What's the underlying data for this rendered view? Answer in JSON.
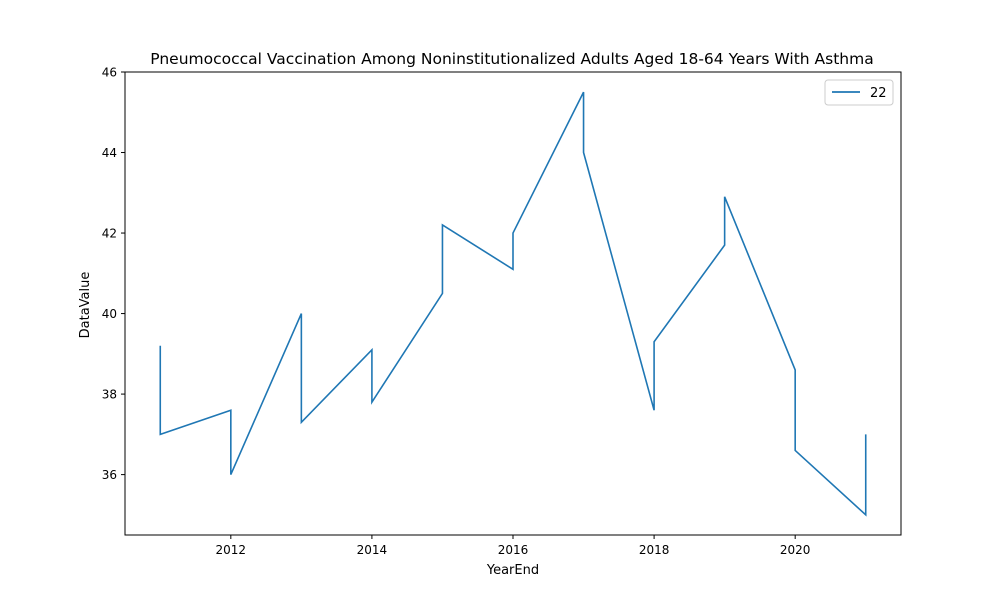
{
  "chart_data": {
    "type": "line",
    "title": "Pneumococcal Vaccination Among Noninstitutionalized Adults Aged 18-64 Years With Asthma",
    "xlabel": "YearEnd",
    "ylabel": "DataValue",
    "xlim": [
      2010.5,
      2021.5
    ],
    "ylim": [
      34.5,
      46
    ],
    "xticks": [
      2012,
      2014,
      2016,
      2018,
      2020
    ],
    "yticks": [
      36,
      38,
      40,
      42,
      44,
      46
    ],
    "grid": false,
    "legend_position": "top-right",
    "series": [
      {
        "name": "22",
        "color": "#1f77b4",
        "points": [
          [
            2011,
            39.2
          ],
          [
            2011,
            37.0
          ],
          [
            2012,
            37.6
          ],
          [
            2012,
            36.0
          ],
          [
            2013,
            40.0
          ],
          [
            2013,
            37.3
          ],
          [
            2014,
            39.1
          ],
          [
            2014,
            37.8
          ],
          [
            2015,
            40.5
          ],
          [
            2015,
            42.2
          ],
          [
            2016,
            41.1
          ],
          [
            2016,
            42.0
          ],
          [
            2017,
            45.5
          ],
          [
            2017,
            44.0
          ],
          [
            2018,
            37.6
          ],
          [
            2018,
            39.3
          ],
          [
            2019,
            41.7
          ],
          [
            2019,
            42.9
          ],
          [
            2020,
            38.6
          ],
          [
            2020,
            36.6
          ],
          [
            2021,
            35.0
          ],
          [
            2021,
            37.0
          ]
        ]
      }
    ]
  }
}
